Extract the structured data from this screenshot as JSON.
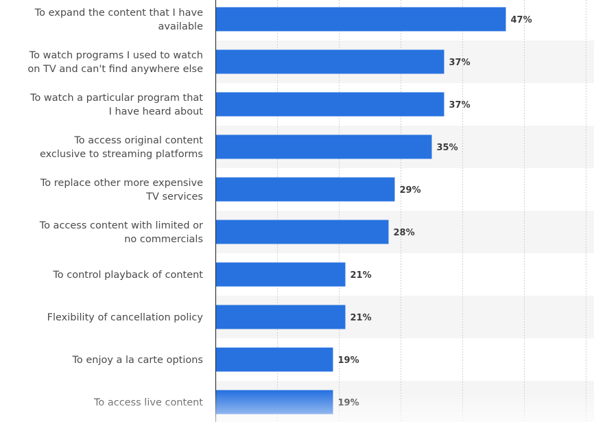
{
  "chart_data": {
    "type": "bar",
    "orientation": "horizontal",
    "title": "",
    "xlabel": "",
    "ylabel": "",
    "xlim": [
      0,
      60
    ],
    "grid": true,
    "bar_color": "#2872e0",
    "value_suffix": "%",
    "categories": [
      [
        "To expand the content that I have",
        "available"
      ],
      [
        "To watch programs I used to watch",
        "on TV and can't find anywhere else"
      ],
      [
        "To watch a particular program that",
        "I have heard about"
      ],
      [
        "To access original content",
        "exclusive to streaming platforms"
      ],
      [
        "To replace other more expensive",
        "TV services"
      ],
      [
        "To access content with limited or",
        "no commercials"
      ],
      [
        "To control playback of content"
      ],
      [
        "Flexibility of cancellation policy"
      ],
      [
        "To enjoy a la carte options"
      ],
      [
        "To access live content"
      ]
    ],
    "values": [
      47,
      37,
      37,
      35,
      29,
      28,
      21,
      21,
      19,
      19
    ],
    "value_labels": [
      "47%",
      "37%",
      "37%",
      "35%",
      "29%",
      "28%",
      "21%",
      "21%",
      "19%",
      "19%"
    ]
  }
}
